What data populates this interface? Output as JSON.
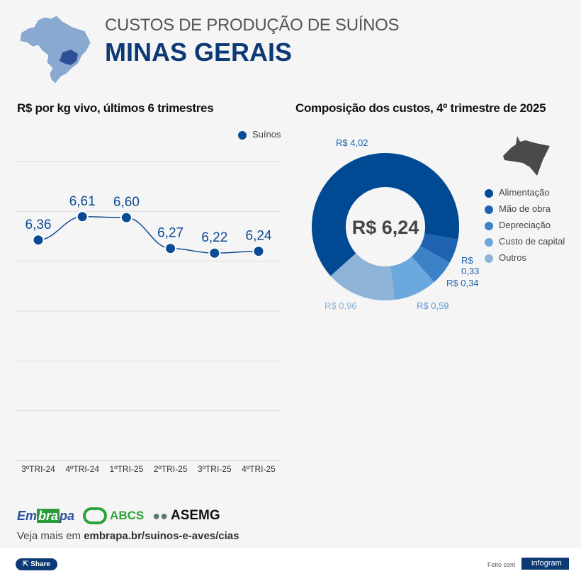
{
  "header": {
    "subtitle": "CUSTOS DE PRODUÇÃO DE SUÍNOS",
    "title": "MINAS GERAIS"
  },
  "colors": {
    "title": "#0b3a75",
    "line": "#0b4b93",
    "alimentacao": "#004a94",
    "mao": "#1e63b0",
    "depreciacao": "#3b82c7",
    "capital": "#6aa8de",
    "outros": "#8db3d6"
  },
  "chart_data": [
    {
      "type": "line",
      "title": "R$ por kg vivo, últimos 6 trimestres",
      "categories": [
        "3ºTRI-24",
        "4ºTRI-24",
        "1ºTRI-25",
        "2ºTRI-25",
        "3ºTRI-25",
        "4ºTRI-25"
      ],
      "series": [
        {
          "name": "Suínos",
          "values": [
            6.36,
            6.61,
            6.6,
            6.27,
            6.22,
            6.24
          ],
          "labels": [
            "6,36",
            "6,61",
            "6,60",
            "6,27",
            "6,22",
            "6,24"
          ]
        }
      ],
      "ylim": [
        4.0,
        7.2
      ],
      "grid": true,
      "legend": "top-right"
    },
    {
      "type": "pie",
      "title": "Composição dos custos, 4º trimestre de 2025",
      "center_label": "R$ 6,24",
      "slices": [
        {
          "name": "Alimentação",
          "value": 4.02,
          "label": "R$ 4,02"
        },
        {
          "name": "Mão de obra",
          "value": 0.33,
          "label": "R$ 0,33"
        },
        {
          "name": "Depreciação",
          "value": 0.34,
          "label": "R$ 0,34"
        },
        {
          "name": "Custo de capital",
          "value": 0.59,
          "label": "R$ 0,59"
        },
        {
          "name": "Outros",
          "value": 0.96,
          "label": "R$ 0,96"
        }
      ],
      "legend": "right",
      "donut": true
    }
  ],
  "footer": {
    "logos": [
      "Embrapa",
      "ABCS",
      "ASEMG"
    ],
    "link_prefix": "Veja mais em ",
    "link": "embrapa.br/suinos-e-aves/cias",
    "share": "Share",
    "made_with": "Feito com",
    "infogram": "infogram"
  }
}
